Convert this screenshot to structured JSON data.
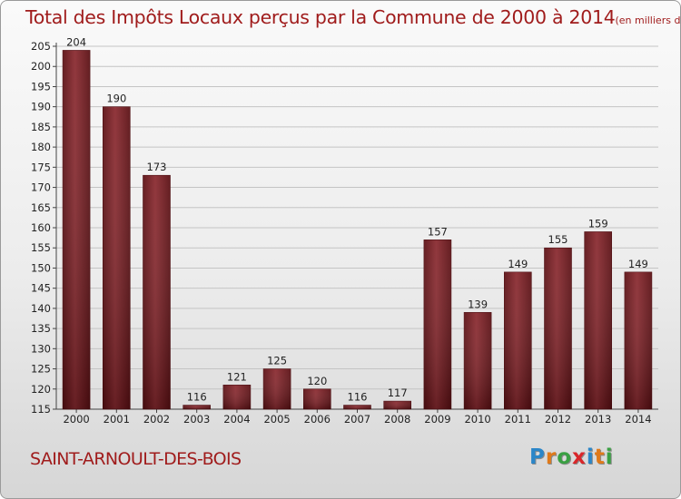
{
  "chart_data": {
    "type": "bar",
    "title": "Total des Impôts Locaux perçus par la Commune de 2000 à 2014",
    "title_unit": "(en milliers d'€)",
    "categories": [
      "2000",
      "2001",
      "2002",
      "2003",
      "2004",
      "2005",
      "2006",
      "2007",
      "2008",
      "2009",
      "2010",
      "2011",
      "2012",
      "2013",
      "2014"
    ],
    "values": [
      204,
      190,
      173,
      116,
      121,
      125,
      120,
      116,
      117,
      157,
      139,
      149,
      155,
      159,
      149
    ],
    "xlabel": "",
    "ylabel": "",
    "ylim": [
      115,
      205
    ],
    "yticks": [
      115,
      120,
      125,
      130,
      135,
      140,
      145,
      150,
      155,
      160,
      165,
      170,
      175,
      180,
      185,
      190,
      195,
      200,
      205
    ],
    "grid": true,
    "bar_color": "#7a1a1f"
  },
  "footer": {
    "commune": "SAINT-ARNOULT-DES-BOIS",
    "logo_letters": [
      "P",
      "r",
      "o",
      "x",
      "i",
      "t",
      "i"
    ],
    "logo_colors": [
      "#2b86c8",
      "#e07a1a",
      "#3aa043",
      "#d9262a",
      "#2b86c8",
      "#e07a1a",
      "#3aa043"
    ]
  }
}
